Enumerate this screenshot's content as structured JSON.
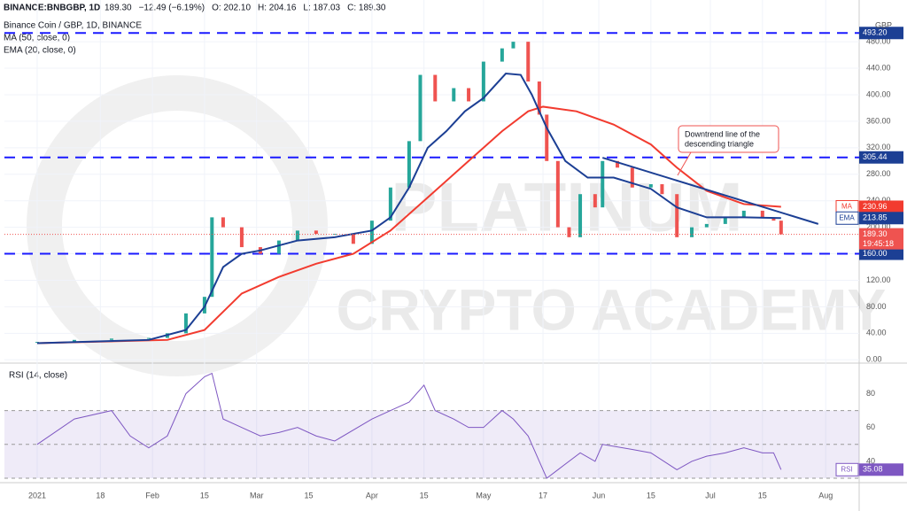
{
  "header": {
    "symbol": "BINANCE:BNBGBP, 1D",
    "last": "189.30",
    "change": "−12.49 (−6.19%)",
    "open": "O: 202.10",
    "high": "H: 204.16",
    "low": "L: 187.03",
    "close": "C: 189.30"
  },
  "chart_data": [
    {
      "type": "line",
      "currency": "GBP",
      "watermark": [
        "PLATINUM",
        "CRYPTO ACADEMY"
      ],
      "annotation": [
        "Downtrend line of the",
        "descending triangle"
      ],
      "xlim": [
        -8.8,
        221
      ],
      "ylim": [
        -5,
        543
      ],
      "xticks": [
        {
          "value": 0,
          "label": "2021"
        },
        {
          "value": 17,
          "label": "18"
        },
        {
          "value": 31,
          "label": "Feb"
        },
        {
          "value": 45,
          "label": "15"
        },
        {
          "value": 59,
          "label": "Mar"
        },
        {
          "value": 73,
          "label": "15"
        },
        {
          "value": 90,
          "label": "Apr"
        },
        {
          "value": 104,
          "label": "15"
        },
        {
          "value": 120,
          "label": "May"
        },
        {
          "value": 136,
          "label": "17"
        },
        {
          "value": 151,
          "label": "Jun"
        },
        {
          "value": 165,
          "label": "15"
        },
        {
          "value": 181,
          "label": "Jul"
        },
        {
          "value": 195,
          "label": "15"
        },
        {
          "value": 212,
          "label": "Aug"
        }
      ],
      "yticks": [
        {
          "value": 0,
          "label": "0.00"
        },
        {
          "value": 40,
          "label": "40.00"
        },
        {
          "value": 80,
          "label": "80.00"
        },
        {
          "value": 120,
          "label": "120.00"
        },
        {
          "value": 160,
          "label": "160.00"
        },
        {
          "value": 200,
          "label": "200.00"
        },
        {
          "value": 240,
          "label": "240.00"
        },
        {
          "value": 280,
          "label": "280.00"
        },
        {
          "value": 320,
          "label": "320.00"
        },
        {
          "value": 360,
          "label": "360.00"
        },
        {
          "value": 400,
          "label": "400.00"
        },
        {
          "value": 440,
          "label": "440.00"
        },
        {
          "value": 480,
          "label": "480.00"
        }
      ],
      "grid": true,
      "levels": [
        {
          "value": 493.2,
          "label": "493.20"
        },
        {
          "value": 305.44,
          "label": "305.44"
        },
        {
          "value": 160,
          "label": "160.00"
        }
      ],
      "trendline": {
        "x": [
          152,
          210
        ],
        "values": [
          305,
          205
        ],
        "color": "#1c3f94"
      },
      "series": [
        {
          "name": "Binance Coin / GBP, 1D, BINANCE",
          "style": "candle",
          "up_color": "#26a69a",
          "down_color": "#ef5350",
          "x": [
            0,
            10,
            20,
            30,
            35,
            40,
            45,
            47,
            50,
            55,
            60,
            65,
            70,
            75,
            80,
            85,
            90,
            95,
            100,
            103,
            107,
            112,
            116,
            120,
            125,
            128,
            132,
            135,
            137,
            140,
            143,
            146,
            150,
            152,
            156,
            160,
            165,
            168,
            172,
            176,
            180,
            185,
            190,
            195,
            198,
            200
          ],
          "values": [
            27,
            30,
            32,
            33,
            40,
            70,
            95,
            215,
            200,
            170,
            160,
            180,
            195,
            190,
            190,
            175,
            210,
            260,
            330,
            430,
            390,
            410,
            390,
            450,
            470,
            480,
            420,
            370,
            300,
            200,
            185,
            250,
            230,
            300,
            290,
            260,
            265,
            250,
            185,
            200,
            205,
            215,
            225,
            215,
            210,
            189.3
          ]
        },
        {
          "name": "MA (50, close, 0)",
          "color": "#f23b2f",
          "x": [
            0,
            35,
            45,
            55,
            65,
            75,
            85,
            95,
            105,
            115,
            125,
            132,
            136,
            145,
            155,
            165,
            172,
            180,
            190,
            200
          ],
          "values": [
            25,
            30,
            45,
            100,
            125,
            145,
            160,
            195,
            245,
            295,
            345,
            375,
            382,
            375,
            355,
            325,
            290,
            255,
            235,
            230.96
          ]
        },
        {
          "name": "EMA (20, close, 0)",
          "color": "#1c3f94",
          "x": [
            0,
            30,
            40,
            45,
            50,
            55,
            60,
            70,
            80,
            90,
            95,
            100,
            105,
            110,
            115,
            120,
            126,
            130,
            133,
            137,
            142,
            148,
            155,
            165,
            172,
            180,
            190,
            200
          ],
          "values": [
            25,
            30,
            45,
            80,
            140,
            160,
            165,
            180,
            185,
            195,
            215,
            260,
            320,
            345,
            375,
            395,
            432,
            430,
            400,
            350,
            300,
            275,
            275,
            258,
            230,
            215,
            215,
            213.85
          ]
        }
      ],
      "tags": [
        {
          "name": "MA",
          "value": 230.96,
          "color": "#f23b2f"
        },
        {
          "name": "EMA",
          "value": 213.85,
          "color": "#1c3f94"
        }
      ],
      "last_price": {
        "value": 189.3,
        "label": "189.30",
        "time": "19:45:18"
      }
    },
    {
      "type": "line",
      "xlim": [
        -8.8,
        221
      ],
      "ylim": [
        30,
        97
      ],
      "yticks": [
        40,
        60,
        80
      ],
      "band": [
        30,
        70
      ],
      "guides": [
        30,
        50,
        70
      ],
      "series": [
        {
          "name": "RSI (14, close)",
          "color": "#7e57c2",
          "x": [
            0,
            10,
            20,
            25,
            30,
            35,
            40,
            45,
            47,
            50,
            55,
            60,
            65,
            70,
            75,
            80,
            90,
            95,
            100,
            104,
            107,
            112,
            116,
            120,
            125,
            128,
            132,
            135,
            137,
            140,
            146,
            150,
            152,
            160,
            165,
            172,
            176,
            180,
            185,
            190,
            195,
            198,
            200
          ],
          "values": [
            50,
            65,
            70,
            55,
            48,
            55,
            80,
            90,
            92,
            65,
            60,
            55,
            57,
            60,
            55,
            52,
            65,
            70,
            75,
            85,
            70,
            65,
            60,
            60,
            70,
            65,
            55,
            40,
            30,
            35,
            45,
            40,
            50,
            47,
            45,
            35,
            40,
            43,
            45,
            48,
            45,
            45,
            35.08
          ]
        }
      ],
      "tags": [
        {
          "name": "RSI",
          "value": 35.08,
          "color": "#7e57c2"
        }
      ]
    }
  ]
}
